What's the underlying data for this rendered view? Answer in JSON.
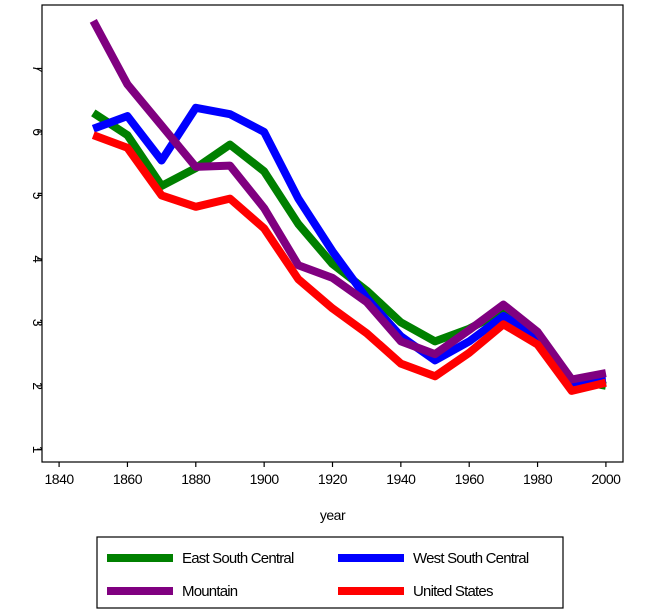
{
  "chart_data": {
    "type": "line",
    "title": "",
    "xlabel": "year",
    "ylabel": "",
    "xlim": [
      1835,
      2005
    ],
    "ylim": [
      0.8,
      8.0
    ],
    "xticks": [
      1840,
      1860,
      1880,
      1900,
      1920,
      1940,
      1960,
      1980,
      2000
    ],
    "yticks": [
      1,
      2,
      3,
      4,
      5,
      6,
      7
    ],
    "grid": false,
    "legend_position": "bottom",
    "x": [
      1850,
      1860,
      1870,
      1880,
      1890,
      1900,
      1910,
      1920,
      1930,
      1940,
      1950,
      1960,
      1970,
      1980,
      1990,
      2000
    ],
    "series": [
      {
        "name": "East South Central",
        "color": "#008000",
        "values": [
          6.3,
          5.95,
          5.15,
          5.43,
          5.8,
          5.38,
          4.55,
          3.92,
          3.5,
          3.0,
          2.7,
          2.9,
          3.18,
          2.8,
          2.1,
          2.0
        ]
      },
      {
        "name": "West South Central",
        "color": "#0000ff",
        "values": [
          6.05,
          6.25,
          5.55,
          6.38,
          6.28,
          6.0,
          4.95,
          4.12,
          3.38,
          2.78,
          2.4,
          2.7,
          3.1,
          2.78,
          2.05,
          2.1
        ]
      },
      {
        "name": "Mountain",
        "color": "#800080",
        "values": [
          7.75,
          6.75,
          6.1,
          5.45,
          5.47,
          4.8,
          3.9,
          3.7,
          3.32,
          2.7,
          2.5,
          2.88,
          3.28,
          2.85,
          2.1,
          2.2
        ]
      },
      {
        "name": "United States",
        "color": "#ff0000",
        "values": [
          5.95,
          5.75,
          5.0,
          4.82,
          4.95,
          4.48,
          3.68,
          3.22,
          2.83,
          2.35,
          2.15,
          2.52,
          2.97,
          2.65,
          1.92,
          2.05
        ]
      }
    ]
  }
}
